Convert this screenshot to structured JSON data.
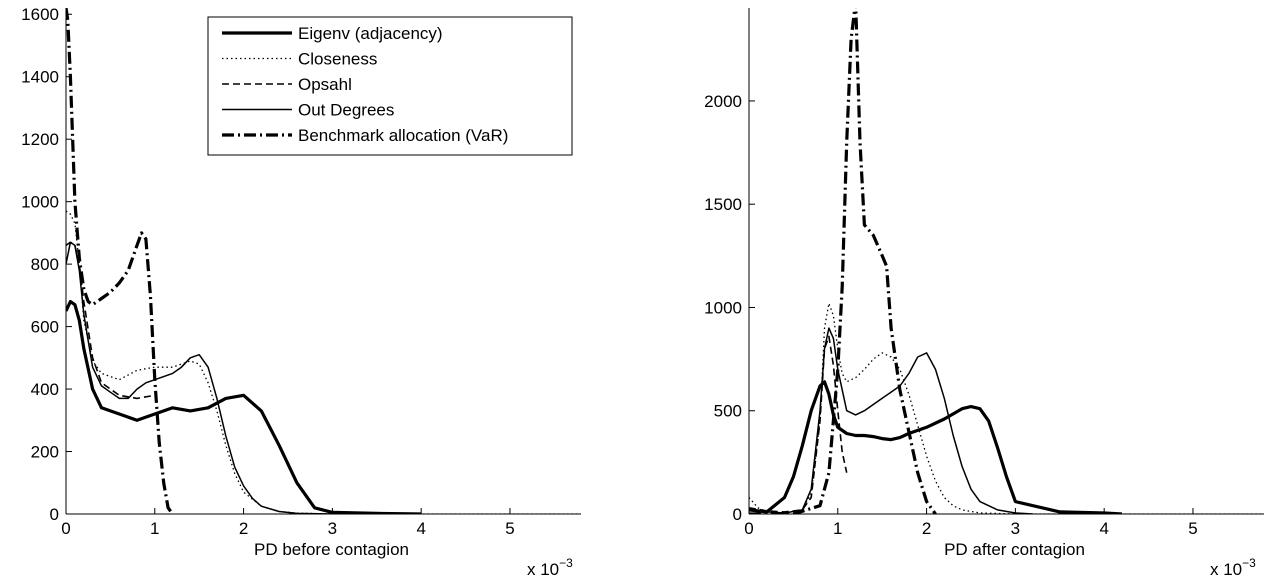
{
  "chart_data": [
    {
      "type": "line",
      "xlabel": "PD before contagion",
      "ylabel": "",
      "x_multiplier": "x 10",
      "x_exponent": "−3",
      "xlim": [
        0,
        0.0058
      ],
      "ylim": [
        0,
        1620
      ],
      "xticks": [
        0,
        0.001,
        0.002,
        0.003,
        0.004,
        0.005
      ],
      "xtick_labels": [
        "0",
        "1",
        "2",
        "3",
        "4",
        "5"
      ],
      "yticks": [
        0,
        200,
        400,
        600,
        800,
        1000,
        1200,
        1400,
        1600
      ],
      "ytick_labels": [
        "0",
        "200",
        "400",
        "600",
        "800",
        "1000",
        "1200",
        "1400",
        "1600"
      ],
      "legend": {
        "placement": "top-right",
        "entries": [
          "Eigenv (adjacency)",
          "Closeness",
          "Opsahl",
          "Out Degrees",
          "Benchmark allocation (VaR)"
        ]
      },
      "series": [
        {
          "name": "Eigenv (adjacency)",
          "style": "thick-solid",
          "x": [
            0,
            5e-05,
            0.0001,
            0.00015,
            0.0002,
            0.0003,
            0.0004,
            0.0006,
            0.0008,
            0.001,
            0.0012,
            0.0014,
            0.0016,
            0.0018,
            0.002,
            0.0022,
            0.0024,
            0.0026,
            0.0028,
            0.003,
            0.0035,
            0.004
          ],
          "y": [
            650,
            680,
            670,
            620,
            530,
            400,
            340,
            320,
            300,
            320,
            340,
            330,
            340,
            370,
            380,
            330,
            220,
            100,
            20,
            5,
            2,
            0
          ]
        },
        {
          "name": "Closeness",
          "style": "dotted",
          "x": [
            0,
            5e-05,
            0.0001,
            0.00015,
            0.0002,
            0.0003,
            0.0004,
            0.0006,
            0.0008,
            0.001,
            0.0012,
            0.0014,
            0.0015,
            0.0016,
            0.0017,
            0.0018,
            0.0019,
            0.002,
            0.0022,
            0.0024,
            0.0026,
            0.003,
            0.004,
            0.005,
            0.0058
          ],
          "y": [
            970,
            960,
            930,
            800,
            620,
            490,
            450,
            430,
            460,
            470,
            470,
            490,
            480,
            420,
            330,
            220,
            130,
            70,
            25,
            8,
            3,
            0,
            0,
            0,
            0
          ]
        },
        {
          "name": "Opsahl",
          "style": "dashed",
          "x": [
            0,
            5e-05,
            0.0001,
            0.00015,
            0.0002,
            0.0003,
            0.0004,
            0.0006,
            0.0008,
            0.001
          ],
          "y": [
            860,
            870,
            860,
            800,
            680,
            500,
            420,
            380,
            370,
            380
          ]
        },
        {
          "name": "Out Degrees",
          "style": "thin-solid",
          "x": [
            0,
            5e-05,
            0.0001,
            0.00015,
            0.0002,
            0.0003,
            0.0004,
            0.0005,
            0.0006,
            0.0007,
            0.0008,
            0.0009,
            0.001,
            0.0011,
            0.0012,
            0.0013,
            0.0014,
            0.0015,
            0.0016,
            0.0017,
            0.0018,
            0.0019,
            0.002,
            0.0021,
            0.0022,
            0.0024,
            0.0026,
            0.003
          ],
          "y": [
            800,
            870,
            860,
            780,
            640,
            470,
            410,
            390,
            370,
            370,
            400,
            420,
            430,
            440,
            450,
            470,
            500,
            510,
            470,
            370,
            250,
            150,
            90,
            50,
            25,
            8,
            2,
            0
          ]
        },
        {
          "name": "Benchmark allocation (VaR)",
          "style": "thick-dashdot",
          "x": [
            0,
            2e-05,
            5e-05,
            0.0001,
            0.00015,
            0.0002,
            0.00025,
            0.0003,
            0.0004,
            0.0005,
            0.0006,
            0.0007,
            0.0008,
            0.00085,
            0.0009,
            0.00095,
            0.001,
            0.00105,
            0.0011,
            0.00115,
            0.0012
          ],
          "y": [
            1620,
            1580,
            1400,
            1000,
            820,
            720,
            680,
            670,
            690,
            710,
            740,
            780,
            860,
            900,
            880,
            700,
            430,
            230,
            100,
            20,
            0
          ]
        }
      ]
    },
    {
      "type": "line",
      "xlabel": "PD after contagion",
      "ylabel": "",
      "x_multiplier": "x 10",
      "x_exponent": "−3",
      "xlim": [
        0,
        0.0058
      ],
      "ylim": [
        0,
        2450
      ],
      "xticks": [
        0,
        0.001,
        0.002,
        0.003,
        0.004,
        0.005
      ],
      "xtick_labels": [
        "0",
        "1",
        "2",
        "3",
        "4",
        "5"
      ],
      "yticks": [
        0,
        500,
        1000,
        1500,
        2000
      ],
      "ytick_labels": [
        "0",
        "500",
        "1000",
        "1500",
        "2000"
      ],
      "series": [
        {
          "name": "Eigenv (adjacency)",
          "style": "thick-solid",
          "x": [
            0,
            0.0002,
            0.0004,
            0.0005,
            0.0006,
            0.0007,
            0.0008,
            0.00085,
            0.0009,
            0.00095,
            0.001,
            0.0011,
            0.0012,
            0.0013,
            0.0014,
            0.0015,
            0.0016,
            0.0017,
            0.0018,
            0.002,
            0.0022,
            0.0024,
            0.0025,
            0.0026,
            0.0027,
            0.0028,
            0.0029,
            0.003,
            0.0035,
            0.004,
            0.0042
          ],
          "y": [
            20,
            10,
            80,
            180,
            330,
            500,
            620,
            640,
            580,
            480,
            420,
            390,
            380,
            380,
            375,
            365,
            360,
            370,
            390,
            420,
            460,
            510,
            520,
            510,
            450,
            320,
            180,
            60,
            10,
            5,
            0
          ]
        },
        {
          "name": "Closeness",
          "style": "dotted",
          "x": [
            0,
            0.0001,
            0.0002,
            0.0004,
            0.0006,
            0.0007,
            0.0008,
            0.00085,
            0.0009,
            0.00095,
            0.001,
            0.00105,
            0.0011,
            0.0012,
            0.0013,
            0.0014,
            0.0015,
            0.0016,
            0.0017,
            0.0018,
            0.0019,
            0.002,
            0.0021,
            0.0022,
            0.0023,
            0.0024,
            0.0026,
            0.003,
            0.004,
            0.005,
            0.0058
          ],
          "y": [
            80,
            30,
            10,
            5,
            20,
            100,
            450,
            900,
            1020,
            960,
            800,
            680,
            640,
            660,
            700,
            750,
            780,
            760,
            700,
            580,
            430,
            280,
            160,
            80,
            40,
            20,
            5,
            0,
            0,
            0,
            0
          ]
        },
        {
          "name": "Opsahl",
          "style": "dashed",
          "x": [
            0,
            0.0002,
            0.0004,
            0.0006,
            0.0007,
            0.0008,
            0.00085,
            0.0009,
            0.00095,
            0.001,
            0.00105,
            0.0011
          ],
          "y": [
            30,
            15,
            10,
            20,
            80,
            450,
            800,
            860,
            720,
            500,
            300,
            200
          ]
        },
        {
          "name": "Out Degrees",
          "style": "thin-solid",
          "x": [
            0,
            0.0002,
            0.0004,
            0.0006,
            0.0007,
            0.0008,
            0.00085,
            0.0009,
            0.00095,
            0.001,
            0.0011,
            0.0012,
            0.0013,
            0.0014,
            0.0015,
            0.0016,
            0.0017,
            0.0018,
            0.0019,
            0.002,
            0.0021,
            0.0022,
            0.0023,
            0.0024,
            0.0025,
            0.0026,
            0.0028,
            0.003,
            0.0032
          ],
          "y": [
            20,
            10,
            5,
            20,
            120,
            500,
            800,
            900,
            850,
            700,
            500,
            480,
            500,
            530,
            560,
            590,
            620,
            680,
            760,
            780,
            700,
            560,
            380,
            230,
            120,
            60,
            20,
            5,
            0
          ]
        },
        {
          "name": "Benchmark allocation (VaR)",
          "style": "thick-dashdot",
          "x": [
            0,
            0.0005,
            0.0008,
            0.0009,
            0.001,
            0.00105,
            0.0011,
            0.00115,
            0.0012,
            0.00125,
            0.0013,
            0.0014,
            0.0015,
            0.00155,
            0.0016,
            0.0017,
            0.0018,
            0.0019,
            0.002,
            0.0021
          ],
          "y": [
            0,
            0,
            40,
            200,
            700,
            1100,
            1800,
            2300,
            2480,
            1800,
            1400,
            1350,
            1250,
            1200,
            900,
            600,
            400,
            200,
            60,
            0
          ]
        }
      ]
    }
  ]
}
